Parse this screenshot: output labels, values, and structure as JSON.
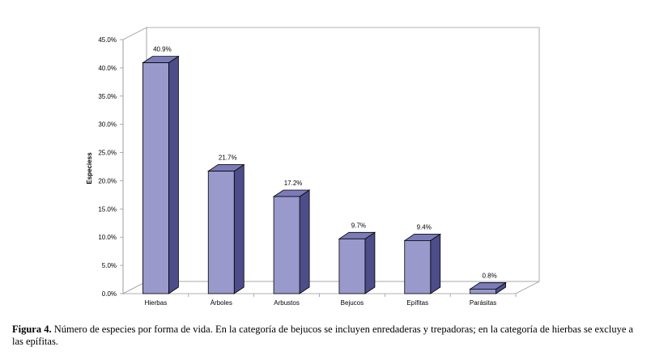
{
  "chart_data": {
    "type": "bar",
    "style": "3d",
    "ylabel": "Especiess",
    "xlabel": "",
    "categories": [
      "Hierbas",
      "Árboles",
      "Arbustos",
      "Bejucos",
      "Epífitas",
      "Parásitas"
    ],
    "values": [
      40.9,
      21.7,
      17.2,
      9.7,
      9.4,
      0.8
    ],
    "data_labels": [
      "40.9%",
      "21.7%",
      "17.2%",
      "9.7%",
      "9.4%",
      "0.8%"
    ],
    "ylim": [
      0,
      45
    ],
    "yticks": [
      "0.0%",
      "5.0%",
      "10.0%",
      "15.0%",
      "20.0%",
      "25.0%",
      "30.0%",
      "35.0%",
      "40.0%",
      "45.0%"
    ],
    "grid": false,
    "legend": "none",
    "colors": {
      "bar_front": "#9999cc",
      "bar_side": "#4d4d8a",
      "bar_top": "#7b7bb8",
      "outline": "#000000",
      "wall": "#999999"
    }
  },
  "caption": {
    "label": "Figura 4.",
    "text": " Número de especies por forma de vida. En la categoría de bejucos se incluyen enredaderas y trepadoras; en la categoría de hierbas se excluye a las epífitas."
  }
}
